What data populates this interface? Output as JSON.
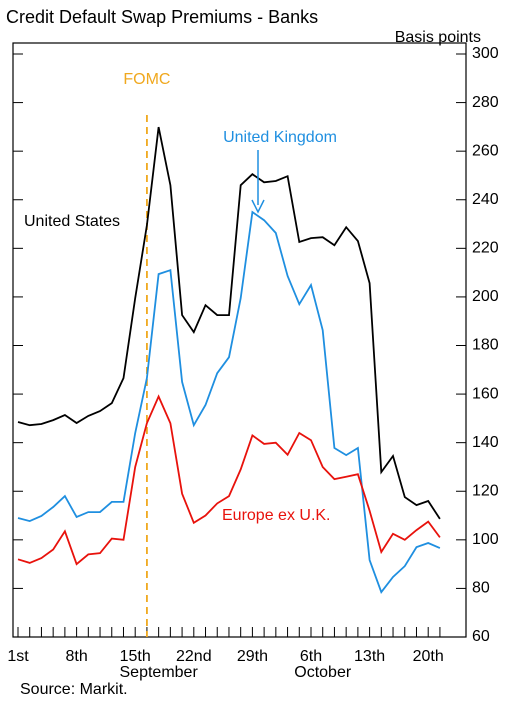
{
  "chart_data": {
    "type": "line",
    "title": "Credit Default Swap Premiums - Banks",
    "y_label": "Basis points",
    "source": "Source: Markit.",
    "categories": [
      "1st",
      null,
      null,
      null,
      null,
      "8th",
      null,
      null,
      null,
      null,
      "15th",
      null,
      null,
      null,
      null,
      "22nd",
      null,
      null,
      null,
      null,
      "29th",
      null,
      null,
      null,
      null,
      "6th",
      null,
      null,
      null,
      null,
      "13th",
      null,
      null,
      null,
      null,
      "20th",
      null
    ],
    "x_groups": [
      {
        "label": "September",
        "at": 12
      },
      {
        "label": "October",
        "at": 26
      }
    ],
    "series": [
      {
        "name": "United States",
        "color": "#000000",
        "values": [
          148.5,
          147.2,
          147.7,
          149.3,
          151.4,
          148.1,
          151,
          153,
          156.3,
          166.6,
          199.5,
          229.5,
          269.9,
          246,
          192.5,
          185.5,
          196.6,
          192.5,
          192.5,
          246,
          250.5,
          247.2,
          247.7,
          249.7,
          222.6,
          224.2,
          224.6,
          221.3,
          228.7,
          223,
          205.7,
          127.9,
          134.5,
          117.6,
          114.3,
          116,
          108.6
        ]
      },
      {
        "name": "United Kingdom",
        "color": "#1f8fe0",
        "values": [
          109,
          107.7,
          109.8,
          113.5,
          118,
          109.4,
          111.4,
          111.4,
          115.6,
          115.6,
          144,
          166.6,
          209.4,
          211,
          165,
          147.2,
          155.5,
          168.6,
          175.2,
          199.5,
          234.9,
          231.6,
          226.3,
          208.6,
          197,
          204.9,
          186.3,
          137.8,
          134.9,
          137.8,
          91.7,
          78.5,
          84.7,
          89.2,
          97,
          98.7,
          96.6
        ]
      },
      {
        "name": "Europe ex U.K.",
        "color": "#e8120c",
        "values": [
          92,
          90.5,
          92.5,
          96,
          103.5,
          90,
          94,
          94.5,
          100.5,
          100,
          130,
          148,
          159,
          148,
          119,
          107,
          110,
          115,
          118,
          129,
          143,
          139.5,
          140,
          135,
          144,
          141,
          130,
          125,
          126,
          127,
          112,
          95,
          102.5,
          100,
          104,
          107.5,
          101
        ]
      }
    ],
    "events": [
      {
        "label": "FOMC",
        "x": 11,
        "color": "#f0a81e"
      }
    ],
    "ylim": [
      60,
      300
    ],
    "yticks": [
      60,
      80,
      100,
      120,
      140,
      160,
      180,
      200,
      220,
      240,
      260,
      280,
      300
    ]
  }
}
